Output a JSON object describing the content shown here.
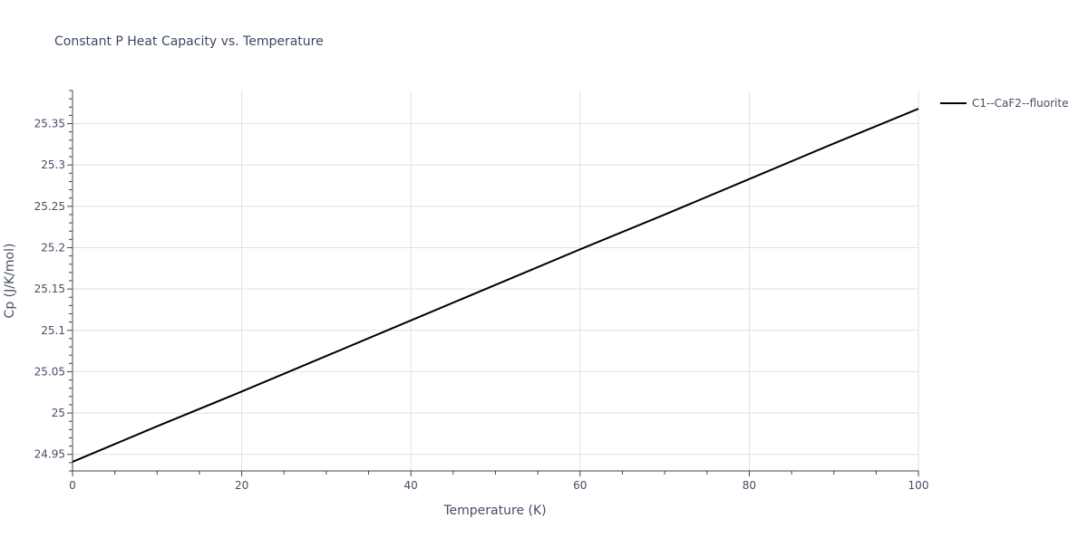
{
  "chart_data": {
    "type": "line",
    "title": "Constant P Heat Capacity vs. Temperature",
    "xlabel": "Temperature (K)",
    "ylabel": "Cp (J/K/mol)",
    "xlim": [
      0,
      100
    ],
    "ylim": [
      24.93,
      25.39
    ],
    "x_ticks": [
      0,
      20,
      40,
      60,
      80,
      100
    ],
    "x_tick_labels": [
      "0",
      "20",
      "40",
      "60",
      "80",
      "100"
    ],
    "y_ticks": [
      24.95,
      25.0,
      25.05,
      25.1,
      25.15,
      25.2,
      25.25,
      25.3,
      25.35
    ],
    "y_tick_labels": [
      "24.95",
      "25",
      "25.05",
      "25.1",
      "25.15",
      "25.2",
      "25.25",
      "25.3",
      "25.35"
    ],
    "grid": true,
    "legend_position": "top-right",
    "series": [
      {
        "name": "C1--CaF2--fluorite",
        "color": "#000000",
        "x": [
          0,
          10,
          20,
          30,
          40,
          50,
          60,
          70,
          80,
          90,
          100
        ],
        "values": [
          24.941,
          24.984,
          25.026,
          25.069,
          25.112,
          25.155,
          25.198,
          25.24,
          25.283,
          25.326,
          25.368
        ]
      }
    ]
  }
}
